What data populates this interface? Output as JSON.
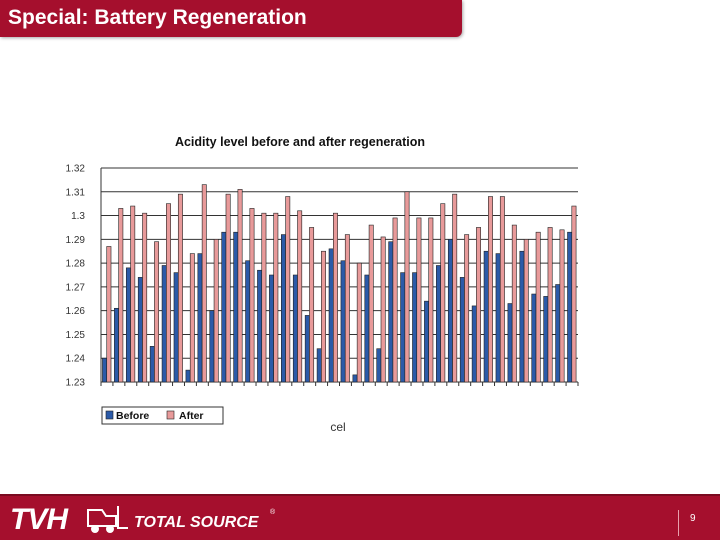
{
  "slide": {
    "title": "Special: Battery Regeneration",
    "page_number": "9"
  },
  "branding": {
    "logo_tvh": "TVH",
    "logo_total_source": "TOTAL SOURCE",
    "registered_mark": "®",
    "accent_color": "#a50f2d"
  },
  "chart_data": {
    "type": "bar",
    "title": "Acidity level before and after regeneration",
    "xlabel": "cel",
    "ylabel": "",
    "ylim": [
      1.23,
      1.32
    ],
    "yticks": [
      1.23,
      1.24,
      1.25,
      1.26,
      1.27,
      1.28,
      1.29,
      1.3,
      1.31,
      1.32
    ],
    "ytick_labels": [
      "1.23",
      "1.24",
      "1.25",
      "1.26",
      "1.27",
      "1.28",
      "1.29",
      "1.3",
      "1.31",
      "1.32"
    ],
    "grid": true,
    "legend_position": "bottom-left",
    "series": [
      {
        "name": "Before",
        "color": "#2b5aa8",
        "values": [
          1.24,
          1.261,
          1.278,
          1.274,
          1.245,
          1.279,
          1.276,
          1.235,
          1.284,
          1.26,
          1.293,
          1.293,
          1.281,
          1.277,
          1.275,
          1.292,
          1.275,
          1.258,
          1.244,
          1.286,
          1.281,
          1.233,
          1.275,
          1.244,
          1.289,
          1.276,
          1.276,
          1.264,
          1.279,
          1.29,
          1.274,
          1.262,
          1.285,
          1.284,
          1.263,
          1.285,
          1.267,
          1.266,
          1.271,
          1.293
        ]
      },
      {
        "name": "After",
        "color": "#e89a9a",
        "values": [
          1.287,
          1.303,
          1.304,
          1.301,
          1.289,
          1.305,
          1.309,
          1.284,
          1.313,
          1.29,
          1.309,
          1.311,
          1.303,
          1.301,
          1.301,
          1.308,
          1.302,
          1.295,
          1.285,
          1.301,
          1.292,
          1.28,
          1.296,
          1.291,
          1.299,
          1.31,
          1.299,
          1.299,
          1.305,
          1.309,
          1.292,
          1.295,
          1.308,
          1.308,
          1.296,
          1.29,
          1.293,
          1.295,
          1.294,
          1.304
        ]
      }
    ]
  }
}
